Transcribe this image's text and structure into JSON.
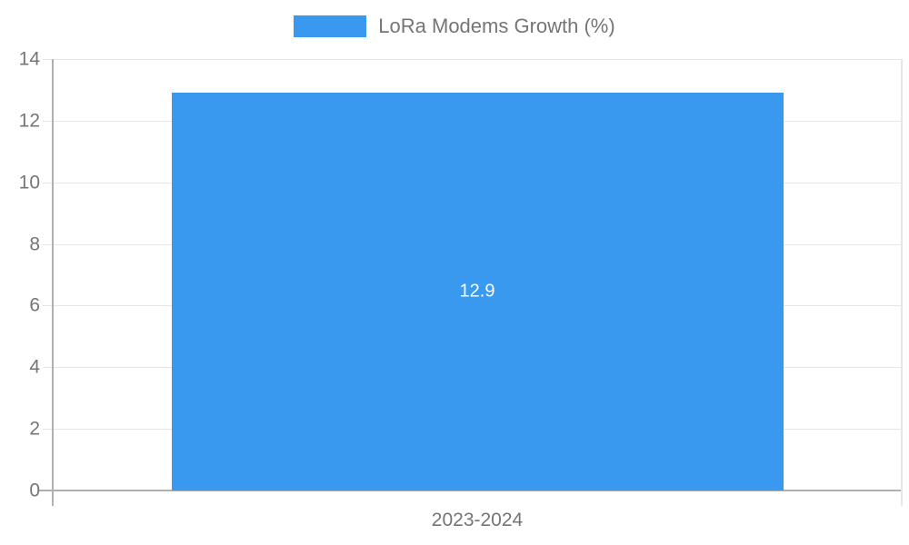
{
  "chart_data": {
    "type": "bar",
    "legend": {
      "label": "LoRa Modems Growth (%)",
      "position": "top"
    },
    "categories": [
      "2023-2024"
    ],
    "values": [
      12.9
    ],
    "bar_labels": [
      "12.9"
    ],
    "title": "",
    "xlabel": "",
    "ylabel": "",
    "ylim": [
      0,
      14
    ],
    "ytick_step": 2,
    "ytick_labels": [
      "0",
      "2",
      "4",
      "6",
      "8",
      "10",
      "12",
      "14"
    ],
    "grid": true,
    "colors": {
      "bar": "#3999ee",
      "text": "#757575",
      "gridline": "#e6e6e6",
      "axis": "#b0b0b0",
      "bar_label_text": "#ffffff"
    }
  }
}
